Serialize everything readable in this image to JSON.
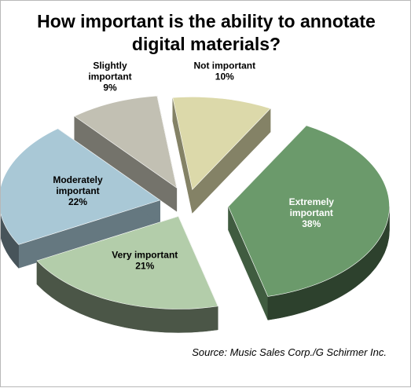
{
  "chart_data": {
    "type": "pie",
    "title": "How important is the ability to annotate digital materials?",
    "categories": [
      "Extremely important",
      "Very important",
      "Moderately important",
      "Slightly important",
      "Not important"
    ],
    "values": [
      38,
      21,
      22,
      9,
      10
    ],
    "value_labels": [
      "38%",
      "21%",
      "22%",
      "9%",
      "10%"
    ],
    "label_lines": [
      [
        "Extremely",
        "important",
        "38%"
      ],
      [
        "Very important",
        "21%"
      ],
      [
        "Moderately",
        "important",
        "22%"
      ],
      [
        "Slightly",
        "important",
        "9%"
      ],
      [
        "Not important",
        "10%"
      ]
    ],
    "colors": [
      "#6b9a6b",
      "#b3cdaa",
      "#a9c8d6",
      "#c2c0b3",
      "#dcd9aa"
    ],
    "label_colors": [
      "#ffffff",
      "#000000",
      "#000000",
      "#000000",
      "#000000"
    ],
    "style": "3d-exploded",
    "legend": "none"
  },
  "source": "Source: Music Sales Corp./G Schirmer Inc."
}
